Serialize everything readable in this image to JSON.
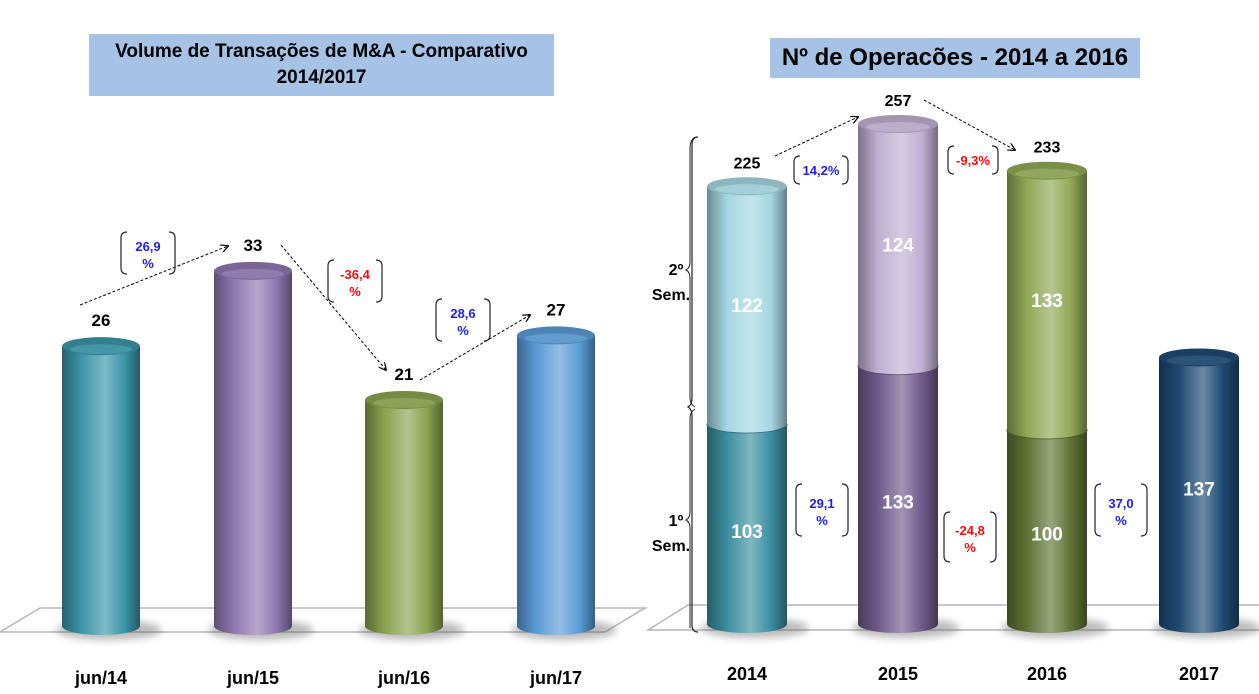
{
  "chart_data": [
    {
      "type": "bar",
      "title": "Volume de Transações de M&A - Comparativo",
      "subtitle": "2014/2017",
      "categories": [
        "jun/14",
        "jun/15",
        "jun/16",
        "jun/17"
      ],
      "values": [
        26,
        33,
        21,
        27
      ],
      "value_labels": [
        "26",
        "33",
        "21",
        "27"
      ],
      "colors": [
        "#3a95a8",
        "#8e78b0",
        "#8aa24f",
        "#5a9bd5"
      ],
      "changes": [
        {
          "from": 0,
          "to": 1,
          "label_top": "26,9",
          "label_bottom": "%",
          "color": "#1f1fe0"
        },
        {
          "from": 1,
          "to": 2,
          "label_top": "-36,4",
          "label_bottom": "%",
          "color": "#ee1111"
        },
        {
          "from": 2,
          "to": 3,
          "label_top": "28,6",
          "label_bottom": "%",
          "color": "#1f1fe0"
        }
      ],
      "xlabel": "",
      "ylabel": "",
      "ylim": [
        0,
        40
      ],
      "grid": false
    },
    {
      "type": "bar",
      "stacked": true,
      "title": "Nº de Operacões  - 2014 a 2016",
      "categories": [
        "2014",
        "2015",
        "2016",
        "2017"
      ],
      "series": [
        {
          "name": "1º Sem.",
          "values": [
            103,
            133,
            100,
            137
          ],
          "colors": [
            "#3a8ea0",
            "#6f5a8c",
            "#5f7335",
            "#1f4a73"
          ]
        },
        {
          "name": "2º Sem.",
          "values": [
            122,
            124,
            133,
            null
          ],
          "colors": [
            "#a4d6e2",
            "#bfb0d2",
            "#90a855",
            null
          ]
        }
      ],
      "totals": [
        "225",
        "257",
        "233",
        null
      ],
      "segment_labels": {
        "first": [
          "103",
          "133",
          "100",
          "137"
        ],
        "second": [
          "122",
          "124",
          "133",
          null
        ]
      },
      "total_changes": [
        {
          "from": 0,
          "to": 1,
          "label": "14,2%",
          "color": "#1f1fe0"
        },
        {
          "from": 1,
          "to": 2,
          "label": "-9,3%",
          "color": "#ee1111"
        }
      ],
      "first_half_changes": [
        {
          "between": 0,
          "label_top": "29,1",
          "label_bottom": "%",
          "color": "#1f1fe0"
        },
        {
          "between": 1,
          "label_top": "-24,8",
          "label_bottom": "%",
          "color": "#ee1111"
        },
        {
          "between": 2,
          "label_top": "37,0",
          "label_bottom": "%",
          "color": "#1f1fe0"
        }
      ],
      "brace_labels": {
        "second": [
          "2º",
          "Sem."
        ],
        "first": [
          "1º",
          "Sem."
        ]
      },
      "ylim": [
        0,
        280
      ],
      "grid": false
    }
  ]
}
